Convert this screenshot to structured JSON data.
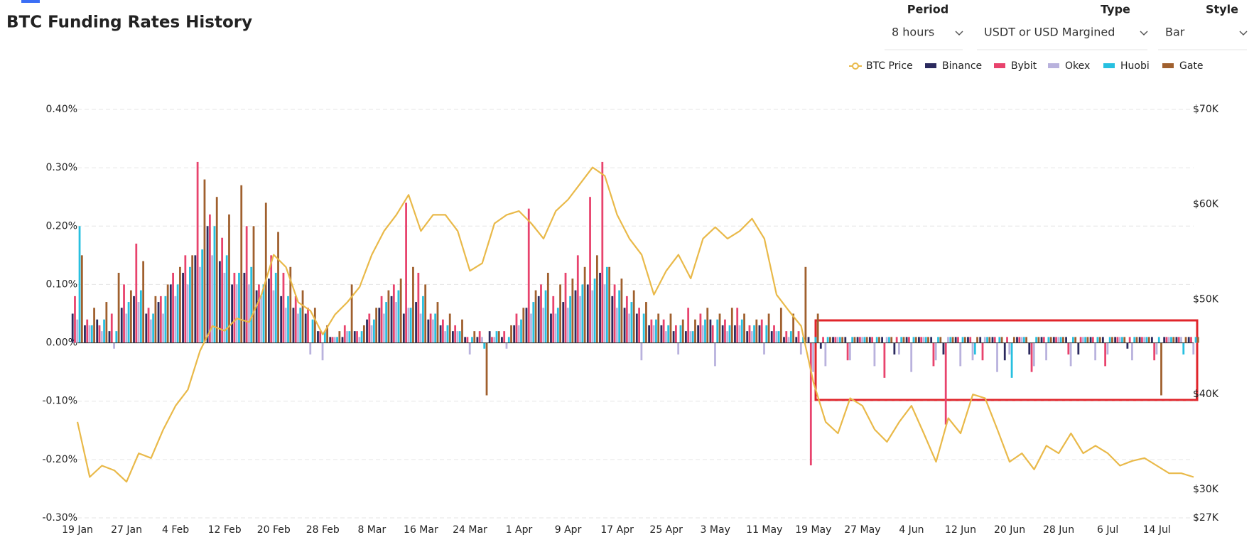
{
  "header": {
    "title": "BTC Funding Rates History",
    "controls": [
      {
        "label": "Period",
        "value": "8 hours"
      },
      {
        "label": "Type",
        "value": "USDT or USD Margined"
      },
      {
        "label": "Style",
        "value": "Bar"
      }
    ]
  },
  "chart_data": {
    "type": "bar",
    "grid": true,
    "legend": "top-right",
    "x": [
      0,
      2,
      4,
      6,
      8,
      10,
      12,
      14,
      16,
      18,
      20,
      22,
      24,
      26,
      28,
      30,
      32,
      34,
      36,
      38,
      40,
      42,
      44,
      46,
      48,
      50,
      52,
      54,
      56,
      58,
      60,
      62,
      64,
      66,
      68,
      70,
      72,
      74,
      76,
      78,
      80,
      82,
      84,
      86,
      88,
      90,
      92,
      94,
      96,
      98,
      100,
      102,
      104,
      106,
      108,
      110,
      112,
      114,
      116,
      118,
      120,
      122,
      124,
      126,
      128,
      130,
      132,
      134,
      136,
      138,
      140,
      142,
      144,
      146,
      148,
      150,
      152,
      154,
      156,
      158,
      160,
      162,
      164,
      166,
      168,
      170,
      172,
      174,
      176,
      178,
      180,
      182
    ],
    "xlim": [
      0,
      182
    ],
    "xticks": [
      {
        "value": 0,
        "label": "19 Jan"
      },
      {
        "value": 8,
        "label": "27 Jan"
      },
      {
        "value": 16,
        "label": "4 Feb"
      },
      {
        "value": 24,
        "label": "12 Feb"
      },
      {
        "value": 32,
        "label": "20 Feb"
      },
      {
        "value": 40,
        "label": "28 Feb"
      },
      {
        "value": 48,
        "label": "8 Mar"
      },
      {
        "value": 56,
        "label": "16 Mar"
      },
      {
        "value": 64,
        "label": "24 Mar"
      },
      {
        "value": 72,
        "label": "1 Apr"
      },
      {
        "value": 80,
        "label": "9 Apr"
      },
      {
        "value": 88,
        "label": "17 Apr"
      },
      {
        "value": 96,
        "label": "25 Apr"
      },
      {
        "value": 104,
        "label": "3 May"
      },
      {
        "value": 112,
        "label": "11 May"
      },
      {
        "value": 120,
        "label": "19 May"
      },
      {
        "value": 128,
        "label": "27 May"
      },
      {
        "value": 136,
        "label": "4 Jun"
      },
      {
        "value": 144,
        "label": "12 Jun"
      },
      {
        "value": 152,
        "label": "20 Jun"
      },
      {
        "value": 160,
        "label": "28 Jun"
      },
      {
        "value": 168,
        "label": "6 Jul"
      },
      {
        "value": 176,
        "label": "14 Jul"
      }
    ],
    "ylim": [
      -0.3,
      0.4
    ],
    "yticks": [
      {
        "value": 0.4,
        "label": "0.40%"
      },
      {
        "value": 0.3,
        "label": "0.30%"
      },
      {
        "value": 0.2,
        "label": "0.20%"
      },
      {
        "value": 0.1,
        "label": "0.10%"
      },
      {
        "value": 0,
        "label": "0.00%"
      },
      {
        "value": -0.1,
        "label": "-0.10%"
      },
      {
        "value": -0.2,
        "label": "-0.20%"
      },
      {
        "value": -0.3,
        "label": "-0.30%"
      }
    ],
    "y2lim": [
      27000,
      70000
    ],
    "y2ticks": [
      {
        "value": 70000,
        "label": "$70K"
      },
      {
        "value": 60000,
        "label": "$60K"
      },
      {
        "value": 50000,
        "label": "$50K"
      },
      {
        "value": 40000,
        "label": "$40K"
      },
      {
        "value": 30000,
        "label": "$30K"
      },
      {
        "value": 27000,
        "label": "$27K"
      }
    ],
    "series": [
      {
        "name": "BTC Price",
        "type": "line",
        "axis": "y2",
        "color": "#e9b949",
        "values": [
          37100,
          31300,
          32500,
          32000,
          30800,
          33800,
          33300,
          36300,
          38800,
          40500,
          44600,
          47200,
          46700,
          48000,
          47600,
          50500,
          54700,
          53400,
          49700,
          48800,
          46300,
          48400,
          49700,
          51300,
          54700,
          57200,
          58900,
          61000,
          57200,
          58900,
          58900,
          57200,
          53000,
          53800,
          58000,
          58900,
          59300,
          58000,
          56400,
          59300,
          60500,
          62200,
          63900,
          63000,
          58900,
          56400,
          54700,
          50500,
          53000,
          54700,
          52200,
          56400,
          57600,
          56400,
          57200,
          58500,
          56400,
          50500,
          48800,
          47200,
          41300,
          37100,
          35900,
          39600,
          38800,
          36300,
          35000,
          37100,
          38800,
          35900,
          32900,
          37500,
          35900,
          40000,
          39600,
          36300,
          32900,
          33800,
          32100,
          34600,
          33800,
          35900,
          33800,
          34600,
          33800,
          32500,
          33000,
          33300,
          32500,
          31700,
          31700,
          31300
        ]
      },
      {
        "name": "Binance",
        "color": "#2b2a5e",
        "values": [
          0.05,
          0.03,
          0.04,
          0.02,
          0.06,
          0.08,
          0.05,
          0.07,
          0.1,
          0.12,
          0.15,
          0.2,
          0.14,
          0.1,
          0.12,
          0.09,
          0.11,
          0.08,
          0.06,
          0.05,
          0.02,
          0.01,
          0.01,
          0.02,
          0.04,
          0.06,
          0.08,
          0.05,
          0.07,
          0.04,
          0.03,
          0.02,
          0.01,
          0.01,
          0.02,
          0.01,
          0.03,
          0.06,
          0.08,
          0.05,
          0.07,
          0.09,
          0.1,
          0.12,
          0.08,
          0.06,
          0.05,
          0.03,
          0.03,
          0.02,
          0.02,
          0.03,
          0.04,
          0.03,
          0.03,
          0.02,
          0.03,
          0.02,
          0.01,
          0.01,
          0.01,
          -0.01,
          0.01,
          0.01,
          0.01,
          0.01,
          0.01,
          -0.02,
          0.01,
          0.01,
          0.01,
          -0.02,
          0.01,
          0.01,
          0.01,
          0.01,
          -0.03,
          0.01,
          -0.02,
          0.01,
          0.01,
          0.01,
          -0.02,
          0.01,
          0.01,
          0.01,
          -0.01,
          0.01,
          0.01,
          0.01,
          0.01,
          0.01
        ]
      },
      {
        "name": "Bybit",
        "color": "#e8436d",
        "values": [
          0.08,
          0.04,
          0.03,
          0.05,
          0.1,
          0.17,
          0.06,
          0.08,
          0.12,
          0.15,
          0.31,
          0.22,
          0.18,
          0.12,
          0.2,
          0.1,
          0.15,
          0.12,
          0.08,
          0.06,
          0.02,
          0.01,
          0.03,
          0.02,
          0.05,
          0.08,
          0.1,
          0.24,
          0.12,
          0.05,
          0.04,
          0.03,
          0.01,
          0.02,
          0.01,
          0.02,
          0.05,
          0.23,
          0.1,
          0.08,
          0.12,
          0.15,
          0.25,
          0.31,
          0.1,
          0.08,
          0.06,
          0.04,
          0.04,
          0.03,
          0.06,
          0.05,
          0.03,
          0.04,
          0.06,
          0.03,
          0.04,
          0.03,
          0.02,
          0.02,
          -0.21,
          0.01,
          0.01,
          -0.03,
          0.01,
          0.01,
          -0.06,
          0.01,
          0.01,
          0.01,
          -0.04,
          -0.14,
          0.01,
          0.01,
          -0.03,
          0.01,
          0.01,
          0.01,
          -0.05,
          0.01,
          0.01,
          -0.02,
          0.01,
          0.01,
          -0.04,
          0.01,
          0.01,
          0.01,
          -0.03,
          0.01,
          0.01,
          0.01
        ]
      },
      {
        "name": "Okex",
        "color": "#b9b2dd",
        "values": [
          0.04,
          0.03,
          0.02,
          -0.01,
          0.05,
          0.07,
          0.04,
          0.05,
          0.08,
          0.1,
          0.13,
          0.15,
          0.12,
          0.1,
          0.1,
          0.08,
          0.09,
          0.06,
          0.05,
          -0.02,
          -0.03,
          0.01,
          0.02,
          0.01,
          0.03,
          0.05,
          0.07,
          0.06,
          0.05,
          0.04,
          0.02,
          0.02,
          -0.02,
          0.01,
          0.01,
          -0.01,
          0.03,
          0.05,
          0.06,
          0.05,
          0.06,
          0.08,
          0.09,
          0.1,
          0.06,
          0.05,
          -0.03,
          0.03,
          0.02,
          -0.02,
          0.02,
          0.03,
          -0.04,
          0.02,
          0.03,
          0.02,
          -0.02,
          0.02,
          0.01,
          -0.02,
          -0.05,
          -0.04,
          0.01,
          -0.03,
          0.01,
          -0.04,
          0.01,
          -0.02,
          -0.05,
          0.01,
          -0.03,
          0.01,
          -0.04,
          -0.03,
          0.01,
          -0.05,
          -0.02,
          0.01,
          -0.04,
          -0.03,
          0.01,
          -0.04,
          0.01,
          -0.03,
          -0.02,
          0.01,
          -0.03,
          0.01,
          -0.02,
          0.01,
          0.01,
          -0.02
        ]
      },
      {
        "name": "Huobi",
        "color": "#27c0e0",
        "values": [
          0.2,
          0.03,
          0.04,
          0.02,
          0.07,
          0.09,
          0.05,
          0.08,
          0.1,
          0.13,
          0.16,
          0.2,
          0.15,
          0.12,
          0.13,
          0.1,
          0.12,
          0.08,
          0.06,
          0.04,
          0.02,
          0.01,
          0.02,
          0.02,
          0.04,
          0.07,
          0.09,
          0.06,
          0.08,
          0.05,
          0.03,
          0.02,
          0.01,
          -0.01,
          0.02,
          0.01,
          0.04,
          0.07,
          0.09,
          0.06,
          0.08,
          0.1,
          0.11,
          0.13,
          0.09,
          0.07,
          0.05,
          0.04,
          0.03,
          0.03,
          0.02,
          0.04,
          0.04,
          0.03,
          0.04,
          0.03,
          0.03,
          0.02,
          0.02,
          0.01,
          0.01,
          0.01,
          0.01,
          0.01,
          0.01,
          0.01,
          0.01,
          0.01,
          0.01,
          0.01,
          0.01,
          0.01,
          0.01,
          -0.02,
          0.01,
          0.01,
          -0.06,
          0.01,
          0.01,
          0.01,
          0.01,
          0.01,
          0.01,
          0.01,
          0.01,
          0.01,
          0.01,
          0.01,
          0.01,
          0.01,
          -0.02,
          0.01
        ]
      },
      {
        "name": "Gate",
        "color": "#a0602e",
        "values": [
          0.15,
          0.06,
          0.07,
          0.12,
          0.09,
          0.14,
          0.08,
          0.1,
          0.13,
          0.15,
          0.28,
          0.25,
          0.22,
          0.27,
          0.2,
          0.24,
          0.19,
          0.13,
          0.09,
          0.06,
          0.03,
          0.02,
          0.1,
          0.03,
          0.06,
          0.09,
          0.11,
          0.13,
          0.1,
          0.07,
          0.05,
          0.04,
          0.02,
          -0.09,
          0.02,
          0.03,
          0.06,
          0.09,
          0.12,
          0.1,
          0.11,
          0.13,
          0.15,
          0.13,
          0.11,
          0.09,
          0.07,
          0.05,
          0.05,
          0.04,
          0.04,
          0.06,
          0.05,
          0.06,
          0.05,
          0.04,
          0.05,
          0.06,
          0.05,
          0.13,
          0.05,
          0.01,
          0.01,
          0.01,
          0.01,
          0.01,
          0.01,
          0.01,
          0.01,
          0.01,
          0.01,
          0.01,
          0.01,
          0.01,
          0.01,
          0.01,
          0.01,
          0.01,
          0.01,
          0.01,
          0.01,
          0.01,
          0.01,
          0.01,
          0.01,
          0.01,
          0.01,
          0.01,
          -0.09,
          0.01,
          0.01,
          0.01
        ]
      }
    ]
  }
}
